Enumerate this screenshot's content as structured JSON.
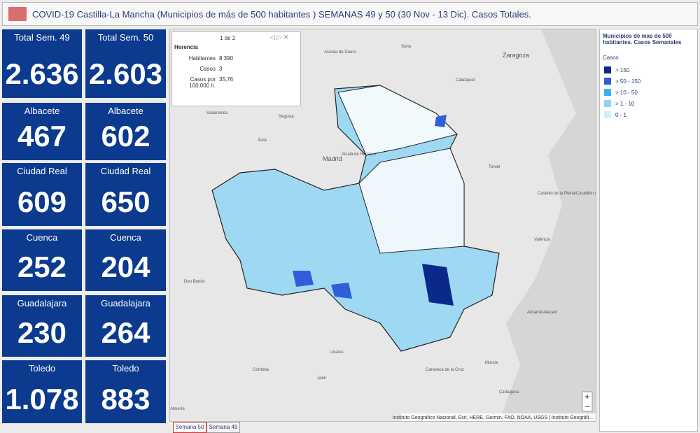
{
  "header": {
    "title": "COVID-19 Castilla-La Mancha (Municipios de más de 500 habitantes ) SEMANAS 49 y 50 (30 Nov - 13 Dic). Casos Totales."
  },
  "cards": [
    {
      "label": "Total Sem. 49",
      "value": "2.636"
    },
    {
      "label": "Total Sem. 50",
      "value": "2.603"
    },
    {
      "label": "Albacete",
      "value": "467"
    },
    {
      "label": "Albacete",
      "value": "602"
    },
    {
      "label": "Ciudad Real",
      "value": "609"
    },
    {
      "label": "Ciudad Real",
      "value": "650"
    },
    {
      "label": "Cuenca",
      "value": "252"
    },
    {
      "label": "Cuenca",
      "value": "204"
    },
    {
      "label": "Guadalajara",
      "value": "230"
    },
    {
      "label": "Guadalajara",
      "value": "264"
    },
    {
      "label": "Toledo",
      "value": "1.078"
    },
    {
      "label": "Toledo",
      "value": "883"
    }
  ],
  "popup": {
    "pager": "1 de 2",
    "title": "Herencia",
    "fields": [
      {
        "label": "Habitantes",
        "value": "8.390"
      },
      {
        "label": "Casos",
        "value": "3"
      },
      {
        "label": "Casos por 100.000 h.",
        "value": "35,76"
      }
    ]
  },
  "map": {
    "places": [
      "Aranda de Duero",
      "Soria",
      "Zaragoza",
      "Calatayud",
      "Salamanca",
      "Segovia",
      "Ávila",
      "Madrid",
      "Alcalá de Henares",
      "Teruel",
      "Castelló de la Plana/Castellón de la Plana",
      "València",
      "Don Benito",
      "Alicante/Alacant",
      "Murcia",
      "Córdoba",
      "Jaén",
      "Linares",
      "Caravaca de la Cruz",
      "Cartagena",
      "Almería"
    ],
    "attribution": "Instituto Geográfico Nacional, Esri, HERE, Garmin, FAO, NOAA, USGS | Instituto Geográfi..."
  },
  "tabs": [
    "Semana 50",
    "Semana 49"
  ],
  "legend": {
    "title": "Municipios de mas de 500 habitantes. Casos Semanales",
    "subtitle": "Casos",
    "items": [
      {
        "label": "> 150",
        "color": "#0a2a8a"
      },
      {
        "label": "> 50 - 150",
        "color": "#2f5fd8"
      },
      {
        "label": "> 10 - 50",
        "color": "#35b4e8"
      },
      {
        "label": "> 1 - 10",
        "color": "#8ed3f2"
      },
      {
        "label": "0 - 1",
        "color": "#d4ecf8"
      }
    ]
  }
}
